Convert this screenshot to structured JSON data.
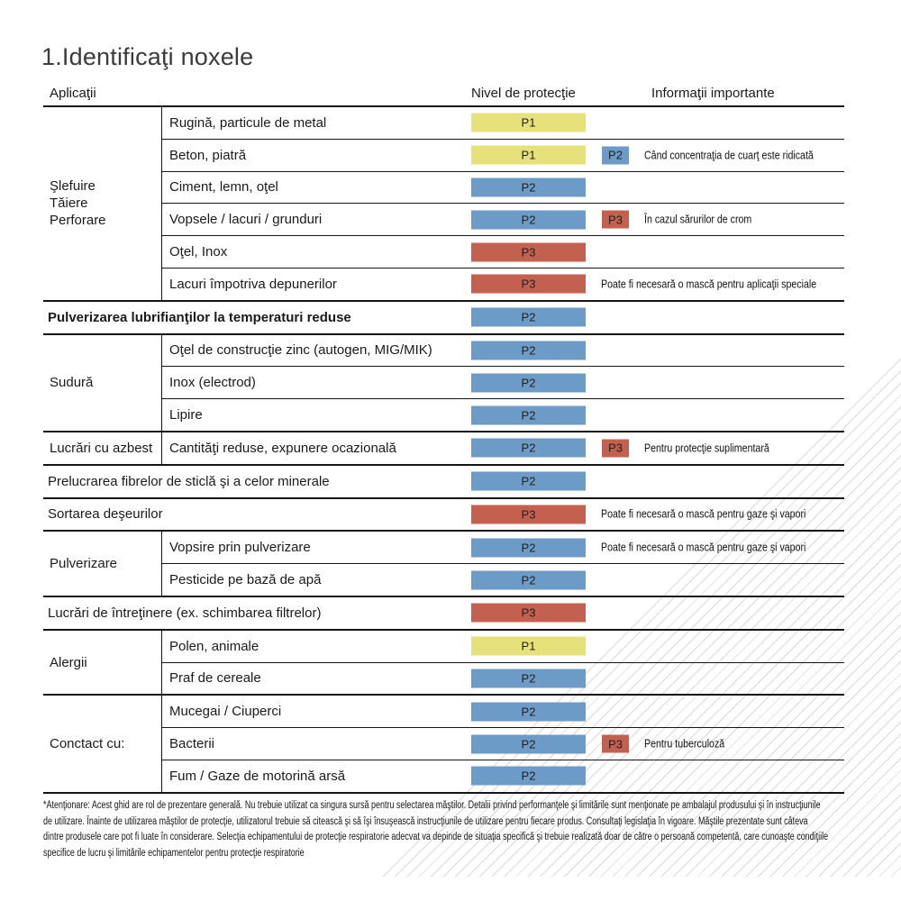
{
  "title": "1.Identificaţi noxele",
  "columns": {
    "applications": "Aplicaţii",
    "protection": "Nivel de protecţie",
    "info": "Informaţii importante"
  },
  "protection_levels": {
    "P1": "#e7e17b",
    "P2": "#6c9bc7",
    "P3": "#c4604f"
  },
  "sections": [
    {
      "type": "group",
      "cat_lines": [
        "Şlefuire",
        "Tăiere",
        "Perforare"
      ],
      "rows": [
        {
          "label": "Rugină, particule de metal",
          "primary": "P1"
        },
        {
          "label": "Beton, piatră",
          "primary": "P1",
          "secondary": "P2",
          "info": "Când concentraţia de cuarţ este ridicată"
        },
        {
          "label": "Ciment, lemn, oţel",
          "primary": "P2"
        },
        {
          "label": "Vopsele / lacuri / grunduri",
          "primary": "P2",
          "secondary": "P3",
          "info": "În cazul sărurilor de crom"
        },
        {
          "label": "Oţel, Inox",
          "primary": "P3"
        },
        {
          "label": "Lacuri împotriva depunerilor",
          "primary": "P3",
          "info": "Poate fi necesară o mască pentru aplicaţii speciale"
        }
      ]
    },
    {
      "type": "full",
      "label": "Pulverizarea lubrifianţilor la temperaturi reduse",
      "primary": "P2"
    },
    {
      "type": "group",
      "category": "Sudură",
      "rows": [
        {
          "label": "Oţel de construcţie zinc (autogen, MIG/MIK)",
          "primary": "P2"
        },
        {
          "label": "Inox (electrod)",
          "primary": "P2"
        },
        {
          "label": "Lipire",
          "primary": "P2"
        }
      ]
    },
    {
      "type": "group",
      "category": "Lucrări cu azbest",
      "rows": [
        {
          "label": "Cantităţi reduse, expunere ocazională",
          "primary": "P2",
          "secondary": "P3",
          "info": "Pentru protecţie suplimentară"
        }
      ]
    },
    {
      "type": "full",
      "label": "Prelucrarea fibrelor de sticlă şi a celor minerale",
      "primary": "P2"
    },
    {
      "type": "full",
      "label": "Sortarea deşeurilor",
      "primary": "P3",
      "info": "Poate fi necesară o mască pentru gaze şi vapori"
    },
    {
      "type": "group",
      "category": "Pulverizare",
      "rows": [
        {
          "label": "Vopsire prin pulverizare",
          "primary": "P2",
          "info": "Poate fi necesară o mască pentru gaze şi vapori"
        },
        {
          "label": "Pesticide pe bază de apă",
          "primary": "P2"
        }
      ]
    },
    {
      "type": "full",
      "label": "Lucrări de întreţinere (ex. schimbarea filtrelor)",
      "primary": "P3"
    },
    {
      "type": "group",
      "category": "Alergii",
      "rows": [
        {
          "label": "Polen, animale",
          "primary": "P1"
        },
        {
          "label": "Praf de cereale",
          "primary": "P2"
        }
      ]
    },
    {
      "type": "group",
      "category": "Conctact cu:",
      "rows": [
        {
          "label": "Mucegai / Ciuperci",
          "primary": "P2"
        },
        {
          "label": "Bacterii",
          "primary": "P2",
          "secondary": "P3",
          "info": "Pentru tuberculoză"
        },
        {
          "label": "Fum / Gaze de motorină arsă",
          "primary": "P2"
        }
      ]
    }
  ],
  "footnote": {
    "lines": [
      "*Atenţionare: Acest ghid are rol de prezentare generală. Nu trebuie utilizat ca singura sursă pentru selectarea măştilor. Detalii privind performanţele şi limitările sunt menţionate pe ambalajul produsului şi în instrucţiunile",
      "de utilizare. Înainte de utilizarea măştilor de protecţie, utilizatorul trebuie să citească şi să îşi însuşească instrucţiunile de utilizare pentru fiecare produs. Consultaţi legislaţia în vigoare. Măştile prezentate sunt câteva",
      "dintre produsele care pot fi luate în considerare. Selecţia echipamentului de protecţie respiratorie adecvat va depinde de situaţia specifică şi trebuie realizată doar de către o persoană competentă, care cunoaşte condiţiile",
      "specifice de lucru şi limitările echipamentelor pentru protecţie respiratorie"
    ]
  }
}
